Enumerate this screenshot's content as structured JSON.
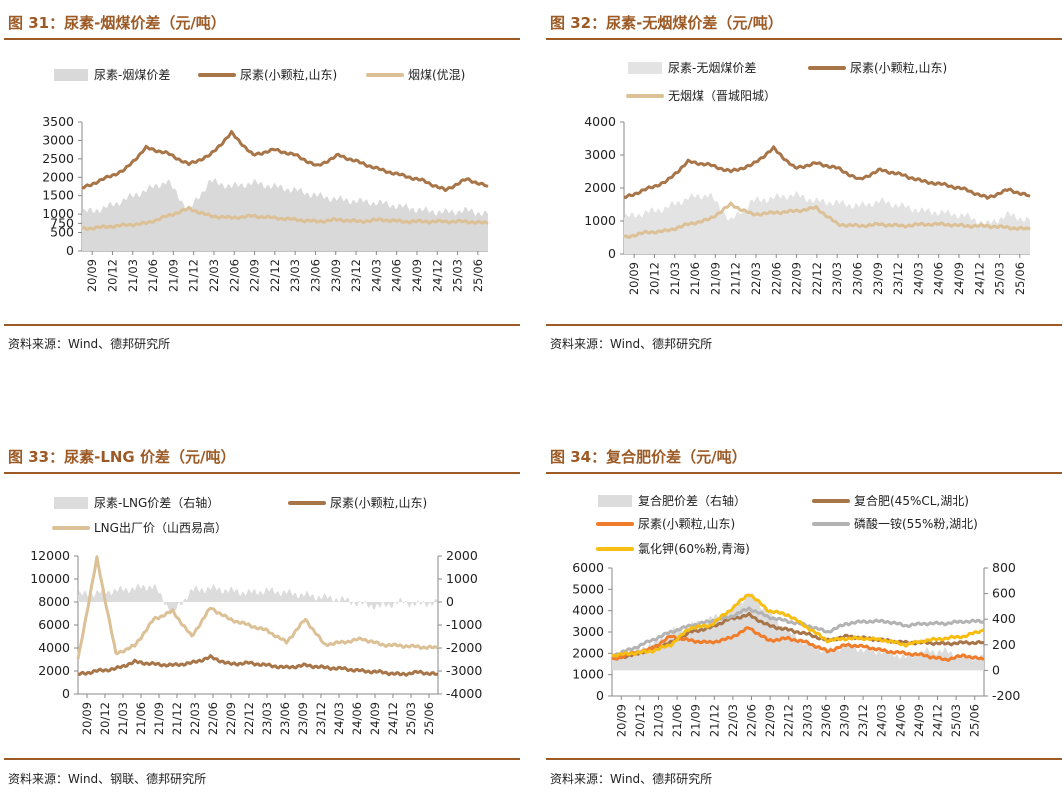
{
  "source_label": "资料来源：",
  "chart_data": [
    {
      "type": "line",
      "title": "图 31：尿素-烟煤价差（元/吨）",
      "source": "Wind、德邦研究所",
      "categories": [
        "20/09",
        "20/12",
        "21/03",
        "21/06",
        "21/09",
        "21/12",
        "22/03",
        "22/06",
        "22/09",
        "22/12",
        "23/03",
        "23/06",
        "23/09",
        "23/12",
        "24/03",
        "24/06",
        "24/09",
        "24/12",
        "25/03",
        "25/06"
      ],
      "ylim": [
        0,
        3500
      ],
      "yticks": [
        0,
        500,
        750,
        1000,
        1500,
        2000,
        2500,
        3000,
        3500
      ],
      "series": [
        {
          "name": "尿素-烟煤价差",
          "kind": "area",
          "color": "#d9d9d9",
          "values": [
            1050,
            1150,
            1400,
            1650,
            1900,
            1100,
            1900,
            1750,
            1850,
            1750,
            1650,
            1500,
            1400,
            1350,
            1300,
            1200,
            1100,
            1050,
            1100,
            1000
          ]
        },
        {
          "name": "尿素(小颗粒,山东)",
          "kind": "line",
          "color": "#a87548",
          "values": [
            1700,
            1950,
            2200,
            2800,
            2650,
            2350,
            2600,
            3200,
            2600,
            2750,
            2600,
            2300,
            2600,
            2400,
            2200,
            2050,
            1900,
            1650,
            1950,
            1750
          ]
        },
        {
          "name": "烟煤(优混)",
          "kind": "line",
          "color": "#dcc096",
          "values": [
            600,
            650,
            700,
            750,
            950,
            1150,
            950,
            900,
            950,
            900,
            850,
            800,
            850,
            800,
            850,
            800,
            800,
            800,
            800,
            750
          ]
        }
      ]
    },
    {
      "type": "line",
      "title": "图 32：尿素-无烟煤价差（元/吨）",
      "source": "Wind、德邦研究所",
      "categories": [
        "20/09",
        "20/12",
        "21/03",
        "21/06",
        "21/09",
        "21/12",
        "22/03",
        "22/06",
        "22/09",
        "22/12",
        "23/03",
        "23/06",
        "23/09",
        "23/12",
        "24/03",
        "24/06",
        "24/09",
        "24/12",
        "25/03",
        "25/06"
      ],
      "ylim": [
        0,
        4000
      ],
      "yticks": [
        0,
        1000,
        2000,
        3000,
        4000
      ],
      "series": [
        {
          "name": "尿素-无烟煤价差",
          "kind": "area",
          "color": "#e3e3e3",
          "values": [
            1100,
            1250,
            1400,
            1700,
            1800,
            1000,
            1600,
            1700,
            1800,
            1600,
            1550,
            1450,
            1600,
            1450,
            1300,
            1250,
            1150,
            900,
            1200,
            1000
          ]
        },
        {
          "name": "尿素(小颗粒,山东)",
          "kind": "line",
          "color": "#a87548",
          "values": [
            1700,
            1950,
            2200,
            2800,
            2700,
            2500,
            2700,
            3200,
            2600,
            2750,
            2600,
            2250,
            2550,
            2400,
            2200,
            2100,
            1950,
            1700,
            1950,
            1750
          ]
        },
        {
          "name": "无烟煤（晋城阳城）",
          "kind": "line",
          "color": "#dcc096",
          "values": [
            500,
            650,
            700,
            900,
            1050,
            1500,
            1200,
            1250,
            1300,
            1400,
            900,
            850,
            900,
            850,
            900,
            900,
            850,
            850,
            800,
            750
          ]
        }
      ]
    },
    {
      "type": "line",
      "title": "图 33：尿素-LNG 价差（元/吨）",
      "source": "Wind、钢联、德邦研究所",
      "categories": [
        "20/09",
        "20/12",
        "21/03",
        "21/06",
        "21/09",
        "21/12",
        "22/03",
        "22/06",
        "22/09",
        "22/12",
        "23/03",
        "23/06",
        "23/09",
        "23/12",
        "24/03",
        "24/06",
        "24/09",
        "24/12",
        "25/03",
        "25/06"
      ],
      "ylim": [
        0,
        12000
      ],
      "yticks": [
        0,
        2000,
        4000,
        6000,
        8000,
        10000,
        12000
      ],
      "y2lim": [
        -4000,
        2000
      ],
      "y2ticks": [
        -4000,
        -3000,
        -2000,
        -1000,
        0,
        1000,
        2000
      ],
      "series": [
        {
          "name": "尿素-LNG价差（右轴）",
          "kind": "area",
          "axis": "right",
          "color": "#dcdcdc",
          "values": [
            300,
            400,
            500,
            600,
            700,
            -500,
            500,
            600,
            500,
            400,
            500,
            400,
            300,
            200,
            100,
            -100,
            -200,
            0,
            -100,
            0
          ]
        },
        {
          "name": "尿素(小颗粒,山东)",
          "kind": "line",
          "axis": "left",
          "color": "#a87548",
          "values": [
            1700,
            2000,
            2200,
            2800,
            2600,
            2500,
            2700,
            3200,
            2600,
            2700,
            2500,
            2300,
            2500,
            2300,
            2200,
            2000,
            1900,
            1700,
            1900,
            1700
          ]
        },
        {
          "name": "LNG出厂价（山西易高）",
          "kind": "line",
          "axis": "left",
          "color": "#dcc096",
          "values": [
            3000,
            11800,
            3500,
            4200,
            6500,
            7200,
            5000,
            7500,
            6500,
            6000,
            5500,
            4500,
            6500,
            4300,
            4500,
            4800,
            4300,
            4200,
            4100,
            4000
          ]
        }
      ]
    },
    {
      "type": "line",
      "title": "图 34：复合肥价差（元/吨）",
      "source": "Wind、德邦研究所",
      "categories": [
        "20/09",
        "20/12",
        "21/03",
        "21/06",
        "21/09",
        "21/12",
        "22/03",
        "22/06",
        "22/09",
        "22/12",
        "23/03",
        "23/06",
        "23/09",
        "23/12",
        "24/03",
        "24/06",
        "24/09",
        "24/12",
        "25/03",
        "25/06"
      ],
      "ylim": [
        0,
        6000
      ],
      "yticks": [
        0,
        1000,
        2000,
        3000,
        4000,
        5000,
        6000
      ],
      "y2lim": [
        -200,
        800
      ],
      "y2ticks": [
        -200,
        0,
        200,
        400,
        600,
        800
      ],
      "series": [
        {
          "name": "复合肥价差（右轴）",
          "kind": "area",
          "axis": "right",
          "color": "#dcdcdc",
          "values": [
            100,
            150,
            200,
            300,
            350,
            400,
            450,
            600,
            450,
            300,
            200,
            150,
            200,
            150,
            150,
            100,
            150,
            150,
            100,
            100
          ]
        },
        {
          "name": "复合肥(45%CL,湖北)",
          "kind": "line",
          "axis": "left",
          "color": "#a87548",
          "values": [
            1800,
            1900,
            2200,
            2500,
            3000,
            3200,
            3600,
            3800,
            3300,
            3100,
            2900,
            2600,
            2800,
            2700,
            2600,
            2500,
            2500,
            2450,
            2500,
            2500
          ]
        },
        {
          "name": "尿素(小颗粒,山东)",
          "kind": "line",
          "axis": "left",
          "color": "#f07d2c",
          "values": [
            1700,
            2000,
            2200,
            2800,
            2600,
            2500,
            2700,
            3200,
            2600,
            2700,
            2500,
            2100,
            2400,
            2300,
            2100,
            2000,
            1900,
            1700,
            1900,
            1700
          ]
        },
        {
          "name": "磷酸一铵(55%粉,湖北)",
          "kind": "line",
          "axis": "left",
          "color": "#b3b3b3",
          "values": [
            1900,
            2200,
            2600,
            3000,
            3300,
            3500,
            3700,
            4100,
            3700,
            3500,
            3300,
            3000,
            3400,
            3500,
            3500,
            3300,
            3400,
            3400,
            3500,
            3500
          ]
        },
        {
          "name": "氯化钾(60%粉,青海)",
          "kind": "line",
          "axis": "left",
          "color": "#f7bd10",
          "values": [
            1900,
            2000,
            2100,
            2400,
            3200,
            3300,
            4000,
            4800,
            4000,
            3800,
            3200,
            2600,
            2700,
            2700,
            2600,
            2400,
            2600,
            2700,
            2800,
            3100
          ]
        }
      ]
    }
  ]
}
